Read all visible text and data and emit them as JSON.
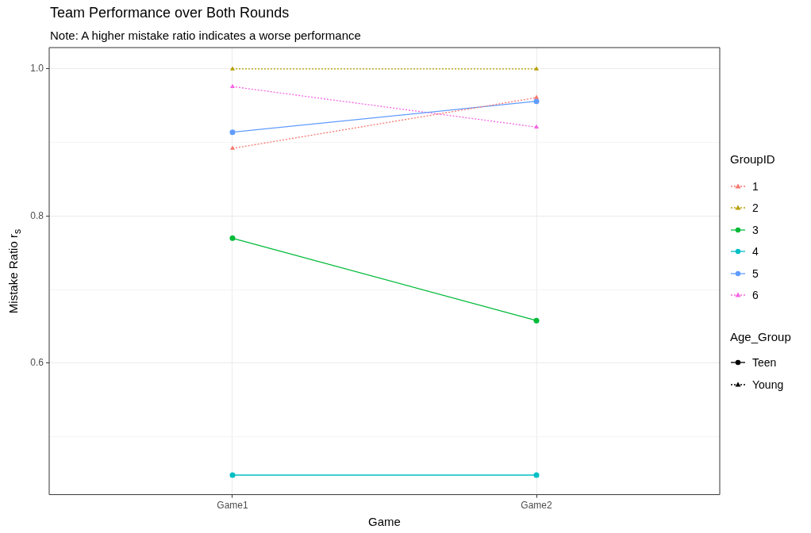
{
  "chart_data": {
    "type": "line",
    "title": "Team Performance over Both Rounds",
    "subtitle": "Note: A higher mistake ratio indicates a worse performance",
    "xlabel": "Game",
    "ylabel": "Mistake Ratio r$_{s}$",
    "legend_title": "GroupID",
    "categories": [
      "Game1",
      "Game2"
    ],
    "ylim": [
      0.4215,
      1.029
    ],
    "yticks": [
      {
        "value": 0.5,
        "label": null
      },
      0.6,
      {
        "value": 0.7,
        "label": null
      },
      0.8,
      {
        "value": 0.9,
        "label": null
      },
      {
        "value": 1,
        "label": "1.0"
      }
    ],
    "grid": true,
    "legend": "right",
    "series": [
      {
        "name": "1",
        "color": "#f8766d",
        "values": [
          0.892,
          0.961
        ],
        "marker": "triangle",
        "line_style": "dotted"
      },
      {
        "name": "2",
        "color": "#b79f00",
        "values": [
          1.0,
          1.0
        ],
        "marker": "triangle",
        "line_style": "dotted"
      },
      {
        "name": "3",
        "color": "#00ba38",
        "values": [
          0.77,
          0.658
        ],
        "marker": "circle",
        "line_style": "solid"
      },
      {
        "name": "4",
        "color": "#00bfc4",
        "values": [
          0.448,
          0.448
        ],
        "marker": "circle",
        "line_style": "solid"
      },
      {
        "name": "5",
        "color": "#619cff",
        "values": [
          0.914,
          0.956
        ],
        "marker": "circle",
        "line_style": "solid"
      },
      {
        "name": "6",
        "color": "#f564e3",
        "values": [
          0.976,
          0.921
        ],
        "marker": "triangle",
        "line_style": "dotted"
      }
    ],
    "annotations": [
      "Age_Group",
      "Teen",
      "Young"
    ]
  }
}
